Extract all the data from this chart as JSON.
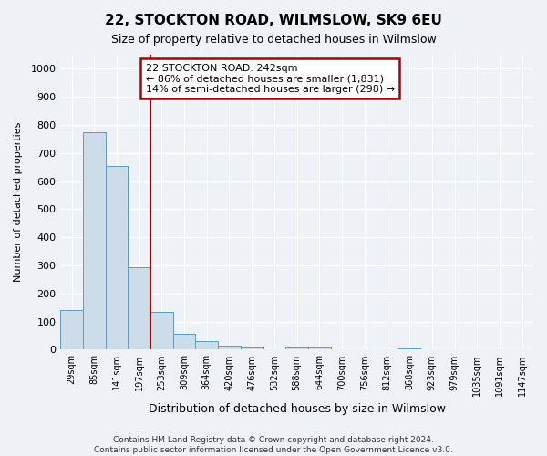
{
  "title": "22, STOCKTON ROAD, WILMSLOW, SK9 6EU",
  "subtitle": "Size of property relative to detached houses in Wilmslow",
  "xlabel": "Distribution of detached houses by size in Wilmslow",
  "ylabel": "Number of detached properties",
  "bar_labels": [
    "29sqm",
    "85sqm",
    "141sqm",
    "197sqm",
    "253sqm",
    "309sqm",
    "364sqm",
    "420sqm",
    "476sqm",
    "532sqm",
    "588sqm",
    "644sqm",
    "700sqm",
    "756sqm",
    "812sqm",
    "868sqm",
    "923sqm",
    "979sqm",
    "1035sqm",
    "1091sqm",
    "1147sqm"
  ],
  "bar_values": [
    140,
    775,
    655,
    295,
    135,
    55,
    30,
    15,
    8,
    2,
    8,
    8,
    2,
    0,
    0,
    5,
    0,
    0,
    0,
    0,
    0
  ],
  "bar_color": "#ccdce8",
  "bar_edge_color": "#6699bb",
  "vline_color": "#aa0000",
  "vline_x": 4,
  "annotation_line1": "22 STOCKTON ROAD: 242sqm",
  "annotation_line2": "← 86% of detached houses are smaller (1,831)",
  "annotation_line3": "14% of semi-detached houses are larger (298) →",
  "annotation_box_edgecolor": "#aa0000",
  "annotation_box_facecolor": "#ffffff",
  "ylim": [
    0,
    1050
  ],
  "yticks": [
    0,
    100,
    200,
    300,
    400,
    500,
    600,
    700,
    800,
    900,
    1000
  ],
  "footer_line1": "Contains HM Land Registry data © Crown copyright and database right 2024.",
  "footer_line2": "Contains public sector information licensed under the Open Government Licence v3.0.",
  "bg_color": "#eef2f7",
  "grid_color": "#ffffff"
}
